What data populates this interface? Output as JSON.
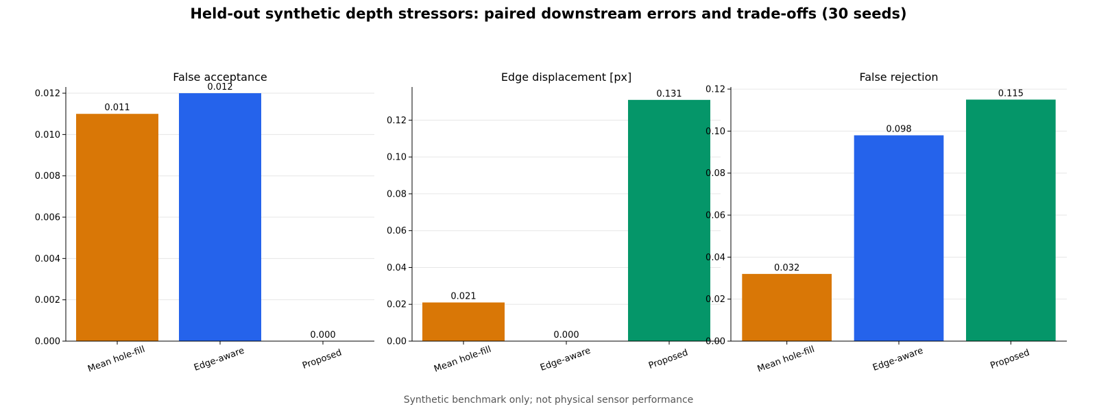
{
  "suptitle": "Held-out synthetic depth stressors: paired downstream errors and trade-offs (30 seeds)",
  "footnote": "Synthetic benchmark only; not physical sensor performance",
  "colors": {
    "Mean hole-fill": "#d97706",
    "Edge-aware": "#2563eb",
    "Proposed": "#059669"
  },
  "chart_data": [
    {
      "type": "bar",
      "title": "False acceptance",
      "categories": [
        "Mean hole-fill",
        "Edge-aware",
        "Proposed"
      ],
      "values": [
        0.011,
        0.012,
        0.0
      ],
      "value_labels": [
        "0.011",
        "0.012",
        "0.000"
      ],
      "ylim": [
        0,
        0.0123
      ],
      "yticks": [
        0.0,
        0.002,
        0.004,
        0.006,
        0.008,
        0.01,
        0.012
      ],
      "ytick_labels": [
        "0.000",
        "0.002",
        "0.004",
        "0.006",
        "0.008",
        "0.010",
        "0.012"
      ],
      "grid": "y"
    },
    {
      "type": "bar",
      "title": "Edge displacement [px]",
      "categories": [
        "Mean hole-fill",
        "Edge-aware",
        "Proposed"
      ],
      "values": [
        0.021,
        0.0,
        0.131
      ],
      "value_labels": [
        "0.021",
        "0.000",
        "0.131"
      ],
      "ylim": [
        0,
        0.138
      ],
      "yticks": [
        0.0,
        0.02,
        0.04,
        0.06,
        0.08,
        0.1,
        0.12
      ],
      "ytick_labels": [
        "0.00",
        "0.02",
        "0.04",
        "0.06",
        "0.08",
        "0.10",
        "0.12"
      ],
      "grid": "y"
    },
    {
      "type": "bar",
      "title": "False rejection",
      "categories": [
        "Mean hole-fill",
        "Edge-aware",
        "Proposed"
      ],
      "values": [
        0.032,
        0.098,
        0.115
      ],
      "value_labels": [
        "0.032",
        "0.098",
        "0.115"
      ],
      "ylim": [
        0,
        0.121
      ],
      "yticks": [
        0.0,
        0.02,
        0.04,
        0.06,
        0.08,
        0.1,
        0.12
      ],
      "ytick_labels": [
        "0.00",
        "0.02",
        "0.04",
        "0.06",
        "0.08",
        "0.10",
        "0.12"
      ],
      "grid": "y"
    }
  ]
}
